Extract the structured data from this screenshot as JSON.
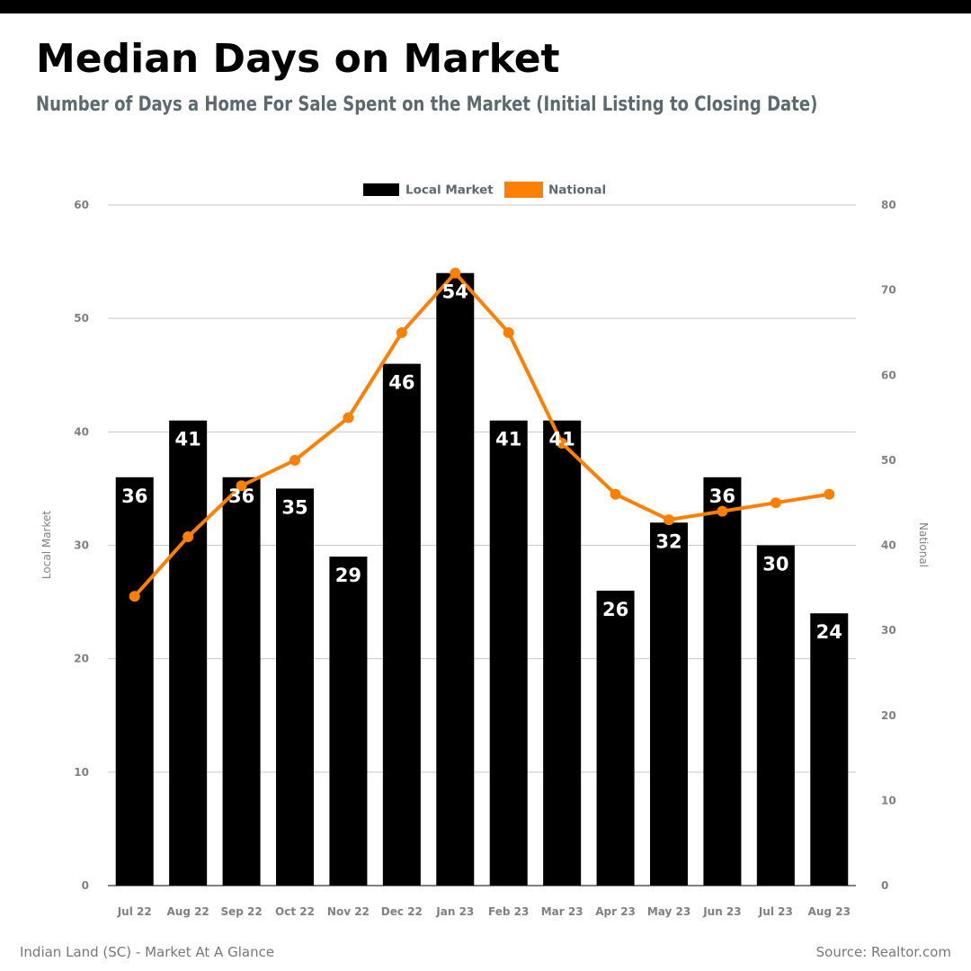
{
  "title": "Median Days on Market",
  "subtitle": "Number of Days a Home For Sale Spent on the Market (Initial Listing to Closing Date)",
  "footer": {
    "left": "Indian Land (SC) - Market At A Glance",
    "right": "Source: Realtor.com"
  },
  "colors": {
    "local": "#000000",
    "national": "#ff8000",
    "axis_text": "#808080",
    "grid": "#c8c8c8",
    "legend_text": "#5c6a70"
  },
  "chart_data": {
    "type": "bar",
    "categories": [
      "Jul 22",
      "Aug 22",
      "Sep 22",
      "Oct 22",
      "Nov 22",
      "Dec 22",
      "Jan 23",
      "Feb 23",
      "Mar 23",
      "Apr 23",
      "May 23",
      "Jun 23",
      "Jul 23",
      "Aug 23"
    ],
    "series": [
      {
        "name": "Local Market",
        "type": "bar",
        "axis": "left",
        "values": [
          36,
          41,
          36,
          35,
          29,
          46,
          54,
          41,
          41,
          26,
          32,
          36,
          30,
          24
        ]
      },
      {
        "name": "National",
        "type": "line",
        "axis": "right",
        "values": [
          34,
          41,
          47,
          50,
          55,
          65,
          72,
          65,
          52,
          46,
          43,
          44,
          45,
          46
        ]
      }
    ],
    "ylabel_left": "Local Market",
    "ylabel_right": "National",
    "ylim_left": [
      0,
      60
    ],
    "ylim_right": [
      0,
      80
    ],
    "yticks_left": [
      0,
      10,
      20,
      30,
      40,
      50,
      60
    ],
    "yticks_right": [
      0,
      10,
      20,
      30,
      40,
      50,
      60,
      70,
      80
    ],
    "grid": true,
    "legend": "top-center"
  }
}
